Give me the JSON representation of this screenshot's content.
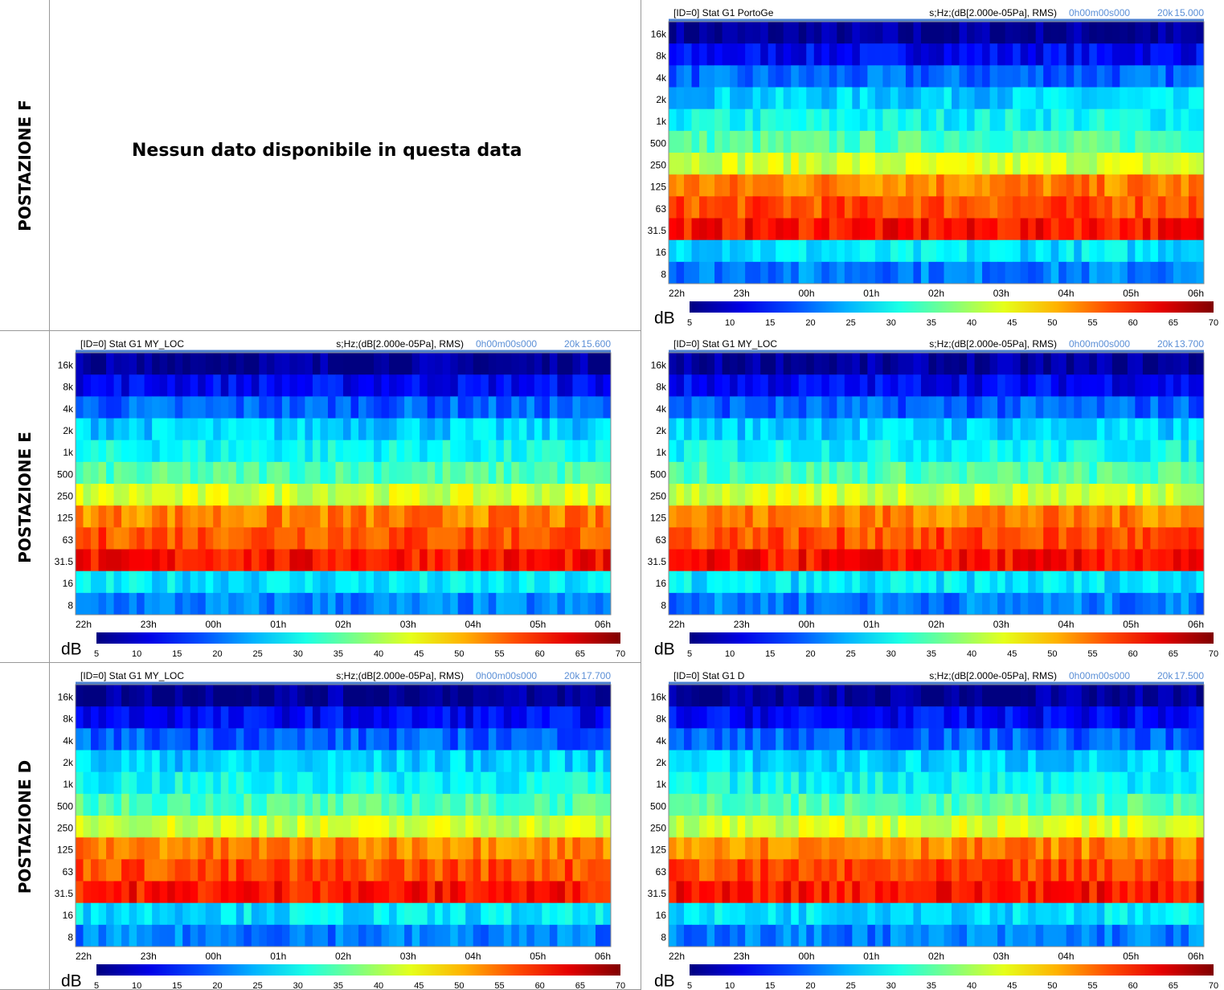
{
  "axes": {
    "units": "s;Hz;(dB[2.000e-05Pa], RMS)",
    "time_code": "0h00m00s000",
    "rate": "20k",
    "freq_labels": [
      "16k",
      "8k",
      "4k",
      "2k",
      "1k",
      "500",
      "250",
      "125",
      "63",
      "31.5",
      "16",
      "8"
    ],
    "time_labels": [
      "22h",
      "23h",
      "00h",
      "01h",
      "02h",
      "03h",
      "04h",
      "05h",
      "06h"
    ],
    "colorbar_label": "dB",
    "colorbar_ticks": [
      5,
      10,
      15,
      20,
      25,
      30,
      35,
      40,
      45,
      50,
      55,
      60,
      65,
      70
    ]
  },
  "rows": [
    {
      "label": "POSTAZIONE F",
      "left": {
        "message": "Nessun dato disponibile in questa data"
      },
      "right": {
        "title": "[ID=0] Stat G1 PortoGe",
        "value": "15.000"
      }
    },
    {
      "label": "POSTAZIONE E",
      "left": {
        "title": "[ID=0] Stat G1 MY_LOC",
        "value": "15.600"
      },
      "right": {
        "title": "[ID=0] Stat G1 MY_LOC",
        "value": "13.700"
      }
    },
    {
      "label": "POSTAZIONE D",
      "left": {
        "title": "[ID=0] Stat G1 MY_LOC",
        "value": "17.700"
      },
      "right": {
        "title": "[ID=0] Stat G1 D",
        "value": "17.500"
      }
    }
  ]
}
